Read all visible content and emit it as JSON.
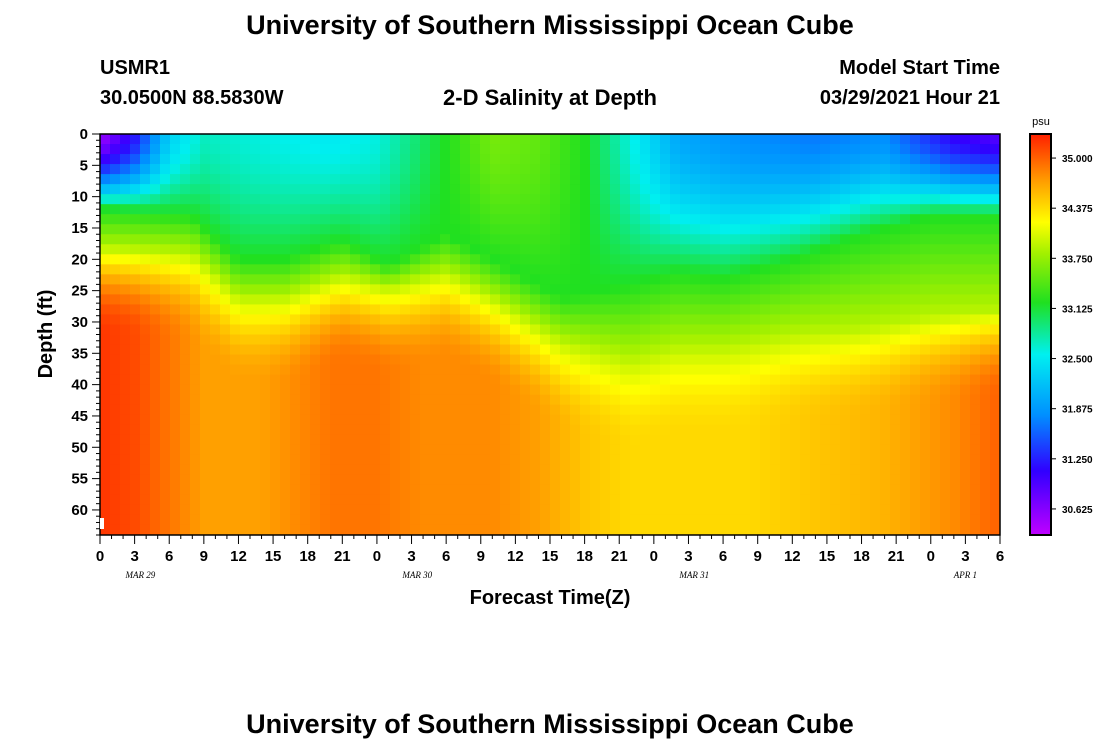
{
  "title": "University of Southern Mississippi Ocean Cube",
  "footer_title": "University of Southern Mississippi Ocean Cube",
  "station": {
    "id": "USMR1",
    "coords": "30.0500N  88.5830W"
  },
  "model": {
    "label": "Model Start Time",
    "datetime": "03/29/2021 Hour 21"
  },
  "chart_data": {
    "type": "heatmap",
    "title": "2-D Salinity at Depth",
    "xlabel": "Forecast Time(Z)",
    "ylabel": "Depth (ft)",
    "x_ticks": [
      "0",
      "3",
      "6",
      "9",
      "12",
      "15",
      "18",
      "21",
      "0",
      "3",
      "6",
      "9",
      "12",
      "15",
      "18",
      "21",
      "0",
      "3",
      "6",
      "9",
      "12",
      "15",
      "18",
      "21",
      "0",
      "3",
      "6"
    ],
    "x_hours_range": [
      0,
      78
    ],
    "date_labels": [
      {
        "label": "MAR 29",
        "hour": 3.5
      },
      {
        "label": "MAR 30",
        "hour": 27.5
      },
      {
        "label": "MAR 31",
        "hour": 51.5
      },
      {
        "label": "APR 1",
        "hour": 75
      }
    ],
    "y_ticks": [
      0,
      5,
      10,
      15,
      20,
      25,
      30,
      35,
      40,
      45,
      50,
      55,
      60
    ],
    "ylim": [
      0,
      64
    ],
    "y_inverted": true,
    "colorbar": {
      "unit": "psu",
      "ticks": [
        "35.000",
        "34.375",
        "33.750",
        "33.125",
        "32.500",
        "31.875",
        "31.250",
        "30.625"
      ],
      "range": [
        30.3,
        35.3
      ]
    },
    "interface_depth_ft": {
      "hours": [
        0,
        8,
        12,
        16,
        21,
        25,
        30,
        34,
        40,
        46,
        50,
        54,
        60,
        66,
        72,
        78
      ],
      "depth": [
        18,
        19,
        26,
        26,
        22.5,
        24.5,
        22,
        26,
        33,
        36,
        34,
        34,
        32,
        31,
        29,
        28
      ]
    },
    "upper_layer_depth_ft": {
      "hours": [
        0,
        8,
        12,
        16,
        21,
        25,
        30,
        34,
        40,
        46,
        50,
        54,
        60,
        66,
        72,
        78
      ],
      "depth": [
        12,
        13,
        20,
        20,
        17,
        21,
        16,
        20,
        26,
        24,
        22,
        23,
        20,
        16,
        13,
        13
      ]
    },
    "surface_salinity_psu": {
      "hours": [
        0,
        3,
        6,
        9,
        14,
        20,
        24,
        28,
        34,
        38,
        42,
        46,
        50,
        56,
        62,
        68,
        74,
        78
      ],
      "value": [
        30.5,
        31.2,
        32.3,
        32.7,
        32.6,
        32.5,
        32.6,
        33.0,
        33.6,
        33.5,
        33.2,
        32.6,
        32.0,
        31.8,
        31.7,
        31.8,
        31.1,
        30.9
      ]
    },
    "deep_salinity_psu": {
      "hours": [
        0,
        3,
        6,
        9,
        14,
        20,
        24,
        28,
        34,
        38,
        42,
        46,
        50,
        56,
        62,
        68,
        74,
        78
      ],
      "value": [
        35.2,
        35.1,
        34.9,
        34.7,
        34.7,
        34.9,
        34.9,
        34.8,
        34.8,
        34.7,
        34.5,
        34.4,
        34.4,
        34.4,
        34.5,
        34.6,
        34.8,
        35.0
      ]
    }
  }
}
